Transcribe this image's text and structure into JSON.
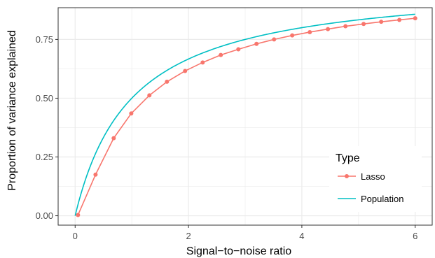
{
  "chart_data": {
    "type": "line",
    "xlabel": "Signal−to−noise ratio",
    "ylabel": "Proportion of variance explained",
    "xlim": [
      -0.3,
      6.3
    ],
    "ylim": [
      -0.04,
      0.885
    ],
    "xticks": [
      0,
      2,
      4,
      6
    ],
    "xtick_labels": [
      "0",
      "2",
      "4",
      "6"
    ],
    "yticks": [
      0,
      0.25,
      0.5,
      0.75
    ],
    "ytick_labels": [
      "0.00",
      "0.25",
      "0.50",
      "0.75"
    ],
    "grid": true,
    "legend": {
      "title": "Type",
      "position": "right-inside",
      "entries": [
        "Lasso",
        "Population"
      ]
    },
    "series": [
      {
        "name": "Lasso",
        "color": "#F8766D",
        "markers": true,
        "x": [
          0.05,
          0.36,
          0.68,
          0.99,
          1.31,
          1.62,
          1.94,
          2.25,
          2.57,
          2.88,
          3.2,
          3.51,
          3.83,
          4.14,
          4.46,
          4.77,
          5.09,
          5.4,
          5.72,
          6.0
        ],
        "y": [
          0.003,
          0.175,
          0.33,
          0.435,
          0.512,
          0.57,
          0.616,
          0.652,
          0.684,
          0.708,
          0.731,
          0.75,
          0.767,
          0.781,
          0.794,
          0.806,
          0.816,
          0.825,
          0.833,
          0.84
        ]
      },
      {
        "name": "Population",
        "color": "#00BFC4",
        "markers": false,
        "function": "x/(1+x)",
        "x_range": [
          0.0,
          6.0
        ]
      }
    ]
  }
}
